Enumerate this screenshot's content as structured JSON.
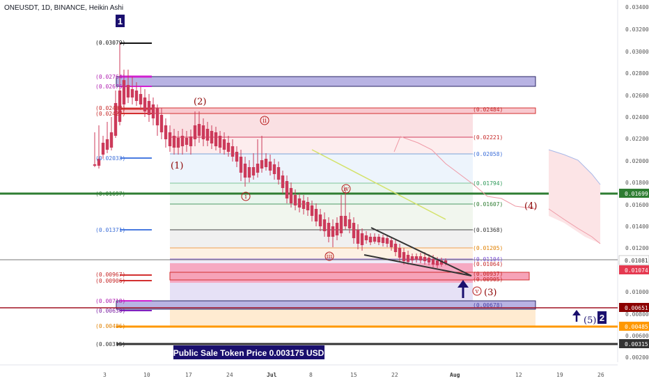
{
  "symbol_header": "ONEUSDT, 1D, BINANCE, Heikin Ashi",
  "banner": "Public Sale Token Price 0.003175 USD",
  "wave_markers": {
    "w1": "1",
    "w2": "2"
  },
  "colors": {
    "bull": "#1a2a8a",
    "bear": "#cc3a5a",
    "accent_green": "#2e7d32",
    "brand_navy": "#1a0f6e"
  },
  "y_axis": {
    "ticks": [
      "0.03400",
      "0.03200",
      "0.03000",
      "0.02800",
      "0.02600",
      "0.02400",
      "0.02200",
      "0.02000",
      "0.01800",
      "0.01600",
      "0.01400",
      "0.01200",
      "0.01000",
      "0.00800",
      "0.00600",
      "0.00400",
      "0.00200"
    ],
    "badges": [
      {
        "value": "0.01699",
        "bg": "#2e7d32",
        "fg": "#ffffff"
      },
      {
        "value": "0.01081",
        "bg": "#ffffff",
        "fg": "#333333"
      },
      {
        "value": "0.01074",
        "bg": "#e53950",
        "fg": "#ffffff"
      },
      {
        "value": "0.00651",
        "bg": "#8b0000",
        "fg": "#ffffff"
      },
      {
        "value": "0.00485",
        "bg": "#ff9800",
        "fg": "#ffffff"
      },
      {
        "value": "0.00315",
        "bg": "#333333",
        "fg": "#ffffff"
      }
    ]
  },
  "x_axis": {
    "ticks": [
      "3",
      "10",
      "17",
      "24",
      "Jul",
      "8",
      "15",
      "22",
      "Aug",
      "12",
      "19",
      "26"
    ]
  },
  "left_levels": [
    "(0.03079)",
    "(0.02764)",
    "(0.02676)",
    "(0.02488)",
    "(0.02427)",
    "(0.02033)",
    "(0.01697)",
    "(0.01371)",
    "(0.00967)",
    "(0.00906)",
    "(0.00718)",
    "(0.00630)",
    "(0.00486)",
    "(0.00315)"
  ],
  "fib_levels": [
    "(0.02484)",
    "(0.02221)",
    "(0.02058)",
    "(0.01794)",
    "(0.01607)",
    "(0.01368)",
    "(0.01205)",
    "(0.01104)",
    "(0.01064)",
    "(0.00937)",
    "(0.00905)",
    "(0.00678)"
  ],
  "wave_labels": {
    "major": [
      "(1)",
      "(2)",
      "(3)",
      "(4)",
      "(5)"
    ],
    "minor": [
      "i",
      "ii",
      "iii",
      "iv",
      "v"
    ]
  }
}
